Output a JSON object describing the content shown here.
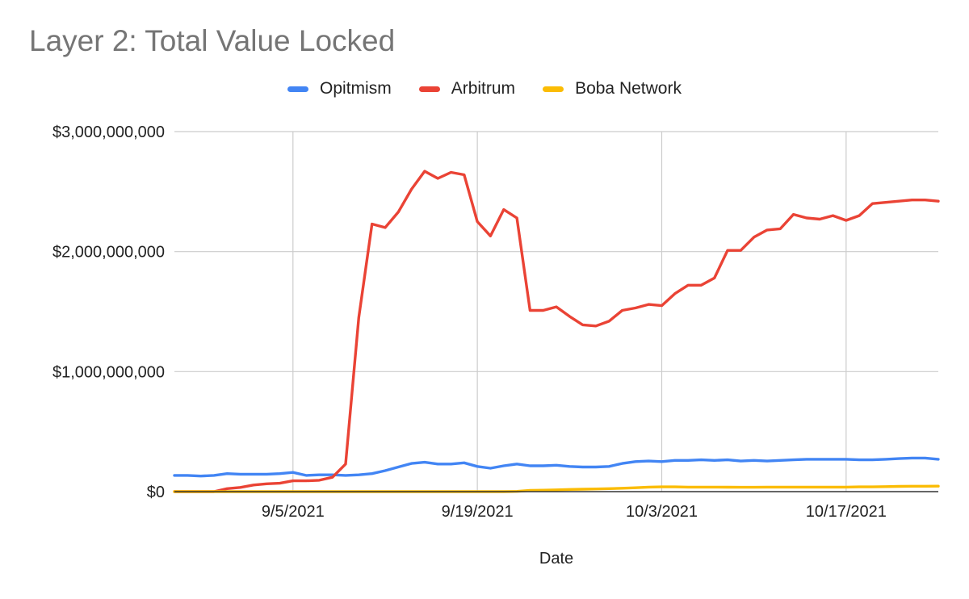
{
  "title": "Layer 2: Total Value Locked",
  "chart_data": {
    "type": "line",
    "title": "Layer 2: Total Value Locked",
    "xlabel": "Date",
    "ylabel": "",
    "x_start": "2021-08-27",
    "x": [
      "8/27/2021",
      "8/28/2021",
      "8/29/2021",
      "8/30/2021",
      "8/31/2021",
      "9/1/2021",
      "9/2/2021",
      "9/3/2021",
      "9/4/2021",
      "9/5/2021",
      "9/6/2021",
      "9/7/2021",
      "9/8/2021",
      "9/9/2021",
      "9/10/2021",
      "9/11/2021",
      "9/12/2021",
      "9/13/2021",
      "9/14/2021",
      "9/15/2021",
      "9/16/2021",
      "9/17/2021",
      "9/18/2021",
      "9/19/2021",
      "9/20/2021",
      "9/21/2021",
      "9/22/2021",
      "9/23/2021",
      "9/24/2021",
      "9/25/2021",
      "9/26/2021",
      "9/27/2021",
      "9/28/2021",
      "9/29/2021",
      "9/30/2021",
      "10/1/2021",
      "10/2/2021",
      "10/3/2021",
      "10/4/2021",
      "10/5/2021",
      "10/6/2021",
      "10/7/2021",
      "10/8/2021",
      "10/9/2021",
      "10/10/2021",
      "10/11/2021",
      "10/12/2021",
      "10/13/2021",
      "10/14/2021",
      "10/15/2021",
      "10/16/2021",
      "10/17/2021",
      "10/18/2021",
      "10/19/2021",
      "10/20/2021",
      "10/21/2021",
      "10/22/2021",
      "10/23/2021",
      "10/24/2021"
    ],
    "x_ticks": [
      "9/5/2021",
      "9/19/2021",
      "10/3/2021",
      "10/17/2021"
    ],
    "x_tick_index": [
      9,
      23,
      37,
      51
    ],
    "ylim": [
      0,
      3000000000
    ],
    "y_ticks": [
      0,
      1000000000,
      2000000000,
      3000000000
    ],
    "y_tick_labels": [
      "$0",
      "$1,000,000,000",
      "$2,000,000,000",
      "$3,000,000,000"
    ],
    "grid": true,
    "legend_position": "top-center",
    "series": [
      {
        "name": "Opitmism",
        "color": "#4285F4",
        "values": [
          135000000,
          135000000,
          130000000,
          135000000,
          150000000,
          145000000,
          145000000,
          145000000,
          150000000,
          160000000,
          135000000,
          140000000,
          140000000,
          135000000,
          140000000,
          150000000,
          175000000,
          205000000,
          235000000,
          245000000,
          230000000,
          230000000,
          240000000,
          210000000,
          195000000,
          215000000,
          230000000,
          215000000,
          215000000,
          220000000,
          210000000,
          205000000,
          205000000,
          210000000,
          235000000,
          250000000,
          255000000,
          250000000,
          260000000,
          260000000,
          265000000,
          260000000,
          265000000,
          255000000,
          260000000,
          255000000,
          260000000,
          265000000,
          270000000,
          270000000,
          270000000,
          270000000,
          265000000,
          265000000,
          270000000,
          275000000,
          280000000,
          280000000,
          270000000
        ]
      },
      {
        "name": "Arbitrum",
        "color": "#EA4335",
        "values": [
          0,
          0,
          0,
          0,
          25000000,
          35000000,
          55000000,
          65000000,
          70000000,
          90000000,
          90000000,
          95000000,
          120000000,
          230000000,
          1450000000,
          2230000000,
          2200000000,
          2330000000,
          2520000000,
          2670000000,
          2610000000,
          2660000000,
          2640000000,
          2250000000,
          2130000000,
          2350000000,
          2280000000,
          1510000000,
          1510000000,
          1540000000,
          1460000000,
          1390000000,
          1380000000,
          1420000000,
          1510000000,
          1530000000,
          1560000000,
          1550000000,
          1650000000,
          1720000000,
          1720000000,
          1780000000,
          2010000000,
          2010000000,
          2120000000,
          2180000000,
          2190000000,
          2310000000,
          2280000000,
          2270000000,
          2300000000,
          2260000000,
          2300000000,
          2400000000,
          2410000000,
          2420000000,
          2430000000,
          2430000000,
          2420000000
        ]
      },
      {
        "name": "Boba Network",
        "color": "#FBBC04",
        "values": [
          0,
          0,
          0,
          0,
          0,
          0,
          0,
          0,
          0,
          0,
          0,
          0,
          0,
          0,
          0,
          0,
          0,
          0,
          0,
          0,
          0,
          0,
          0,
          0,
          0,
          0,
          2000000,
          10000000,
          12000000,
          15000000,
          18000000,
          20000000,
          22000000,
          25000000,
          28000000,
          32000000,
          38000000,
          40000000,
          40000000,
          38000000,
          38000000,
          38000000,
          37000000,
          36000000,
          36000000,
          38000000,
          38000000,
          38000000,
          38000000,
          38000000,
          38000000,
          38000000,
          40000000,
          40000000,
          42000000,
          44000000,
          45000000,
          45000000,
          46000000
        ]
      }
    ]
  }
}
